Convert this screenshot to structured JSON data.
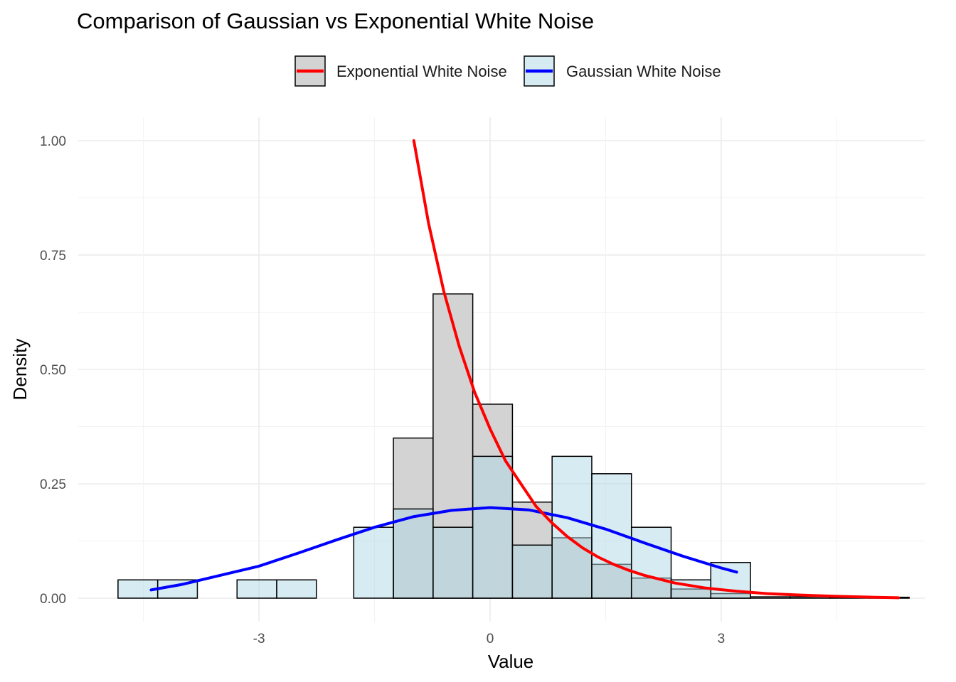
{
  "chart_data": {
    "type": "histogram",
    "title": "Comparison of Gaussian vs Exponential White Noise",
    "xlabel": "Value",
    "ylabel": "Density",
    "xlim": [
      -4.6,
      5.4
    ],
    "ylim": [
      0,
      1.0
    ],
    "x_ticks": [
      -3,
      0,
      3
    ],
    "x_tick_labels": [
      "-3",
      "0",
      "3"
    ],
    "y_ticks": [
      0,
      0.25,
      0.5,
      0.75,
      1.0
    ],
    "y_tick_labels": [
      "0.00",
      "0.25",
      "0.50",
      "0.75",
      "1.00"
    ],
    "grid": true,
    "legend_position": "top",
    "bin_width": 0.515,
    "series": [
      {
        "name": "Exponential White Noise",
        "fill": "#d3d3d3",
        "line_color": "#ff0000",
        "bins": [
          {
            "x0": -1.255,
            "x1": -0.74,
            "density": 0.35
          },
          {
            "x0": -0.74,
            "x1": -0.225,
            "density": 0.665
          },
          {
            "x0": -0.225,
            "x1": 0.29,
            "density": 0.424
          },
          {
            "x0": 0.29,
            "x1": 0.805,
            "density": 0.21
          },
          {
            "x0": 0.805,
            "x1": 1.32,
            "density": 0.132
          },
          {
            "x0": 1.32,
            "x1": 1.835,
            "density": 0.074
          },
          {
            "x0": 1.835,
            "x1": 2.35,
            "density": 0.044
          },
          {
            "x0": 2.35,
            "x1": 2.865,
            "density": 0.02
          },
          {
            "x0": 2.865,
            "x1": 3.38,
            "density": 0.01
          },
          {
            "x0": 3.38,
            "x1": 3.895,
            "density": 0.003
          },
          {
            "x0": 3.895,
            "x1": 4.41,
            "density": 0.003
          },
          {
            "x0": 4.41,
            "x1": 4.925,
            "density": 0.002
          },
          {
            "x0": 4.925,
            "x1": 5.44,
            "density": 0.002
          }
        ],
        "curve": [
          [
            -0.99,
            1.0
          ],
          [
            -0.8,
            0.82
          ],
          [
            -0.6,
            0.67
          ],
          [
            -0.4,
            0.55
          ],
          [
            -0.2,
            0.45
          ],
          [
            0.0,
            0.37
          ],
          [
            0.2,
            0.3
          ],
          [
            0.4,
            0.25
          ],
          [
            0.6,
            0.2
          ],
          [
            0.8,
            0.165
          ],
          [
            1.0,
            0.135
          ],
          [
            1.2,
            0.11
          ],
          [
            1.4,
            0.09
          ],
          [
            1.6,
            0.074
          ],
          [
            1.8,
            0.061
          ],
          [
            2.0,
            0.05
          ],
          [
            2.4,
            0.033
          ],
          [
            2.8,
            0.022
          ],
          [
            3.2,
            0.015
          ],
          [
            3.6,
            0.01
          ],
          [
            4.0,
            0.007
          ],
          [
            4.5,
            0.004
          ],
          [
            5.0,
            0.002
          ],
          [
            5.3,
            0.001
          ]
        ]
      },
      {
        "name": "Gaussian White Noise",
        "fill": "#add8e6",
        "line_color": "#0000ff",
        "bins": [
          {
            "x0": -4.83,
            "x1": -4.315,
            "density": 0.04
          },
          {
            "x0": -4.315,
            "x1": -3.8,
            "density": 0.04
          },
          {
            "x0": -3.285,
            "x1": -2.77,
            "density": 0.04
          },
          {
            "x0": -2.77,
            "x1": -2.255,
            "density": 0.04
          },
          {
            "x0": -1.77,
            "x1": -1.255,
            "density": 0.155
          },
          {
            "x0": -1.255,
            "x1": -0.74,
            "density": 0.195
          },
          {
            "x0": -0.74,
            "x1": -0.225,
            "density": 0.155
          },
          {
            "x0": -0.225,
            "x1": 0.29,
            "density": 0.31
          },
          {
            "x0": 0.29,
            "x1": 0.805,
            "density": 0.116
          },
          {
            "x0": 0.805,
            "x1": 1.32,
            "density": 0.31
          },
          {
            "x0": 1.32,
            "x1": 1.835,
            "density": 0.272
          },
          {
            "x0": 1.835,
            "x1": 2.35,
            "density": 0.155
          },
          {
            "x0": 2.35,
            "x1": 2.865,
            "density": 0.04
          },
          {
            "x0": 2.865,
            "x1": 3.38,
            "density": 0.078
          }
        ],
        "curve": [
          [
            -4.4,
            0.018
          ],
          [
            -4.0,
            0.03
          ],
          [
            -3.5,
            0.05
          ],
          [
            -3.0,
            0.07
          ],
          [
            -2.5,
            0.098
          ],
          [
            -2.0,
            0.127
          ],
          [
            -1.5,
            0.155
          ],
          [
            -1.0,
            0.178
          ],
          [
            -0.5,
            0.192
          ],
          [
            0.0,
            0.198
          ],
          [
            0.5,
            0.193
          ],
          [
            1.0,
            0.176
          ],
          [
            1.5,
            0.151
          ],
          [
            2.0,
            0.121
          ],
          [
            2.5,
            0.092
          ],
          [
            3.0,
            0.066
          ],
          [
            3.2,
            0.057
          ]
        ]
      }
    ]
  }
}
